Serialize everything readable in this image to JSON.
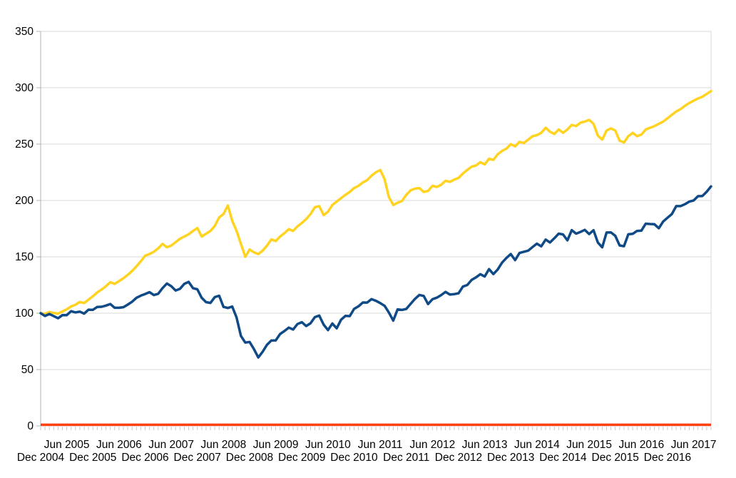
{
  "chart_data": {
    "type": "line",
    "title": "",
    "legend": "none",
    "grid": true,
    "background": "#ffffff",
    "y_axis": {
      "min": 0,
      "max": 350,
      "step": 50,
      "tick_labels": [
        "0",
        "50",
        "100",
        "150",
        "200",
        "250",
        "300",
        "350"
      ]
    },
    "x_axis": {
      "tick_unit": "month",
      "months_total": 155,
      "start_month": "Dec 2004",
      "end_month": "Oct 2017",
      "labels_row1": [
        "Jun 2005",
        "Jun 2006",
        "Jun 2007",
        "Jun 2008",
        "Jun 2009",
        "Jun 2010",
        "Jun 2011",
        "Jun 2012",
        "Jun 2013",
        "Jun 2014",
        "Jun 2015",
        "Jun 2016",
        "Jun 2017"
      ],
      "labels_row2": [
        "Dec 2004",
        "Dec 2005",
        "Dec 2006",
        "Dec 2007",
        "Dec 2008",
        "Dec 2009",
        "Dec 2010",
        "Dec 2011",
        "Dec 2012",
        "Dec 2013",
        "Dec 2014",
        "Dec 2015",
        "Dec 2016"
      ]
    },
    "series": [
      {
        "name": "yellow-line",
        "color": "#FFD320",
        "values": [
          100.0,
          99.5,
          101.0,
          100.2,
          99.6,
          101.5,
          103.5,
          106.0,
          107.5,
          110.0,
          109.0,
          112.0,
          115.0,
          118.5,
          121.0,
          124.0,
          127.5,
          126.0,
          128.5,
          131.0,
          134.0,
          137.5,
          141.5,
          146.0,
          151.0,
          152.5,
          154.5,
          157.5,
          161.5,
          158.5,
          160.0,
          163.0,
          166.0,
          168.0,
          170.0,
          173.0,
          175.5,
          168.0,
          170.5,
          173.0,
          177.5,
          185.0,
          188.0,
          195.5,
          182.0,
          173.0,
          161.5,
          150.0,
          156.5,
          154.0,
          152.5,
          155.5,
          160.0,
          165.5,
          164.0,
          168.0,
          171.0,
          174.5,
          173.0,
          177.0,
          180.0,
          183.5,
          188.0,
          194.0,
          195.0,
          187.0,
          190.0,
          196.0,
          199.0,
          202.0,
          205.0,
          207.5,
          211.0,
          213.0,
          216.0,
          218.0,
          222.0,
          225.0,
          227.0,
          219.0,
          203.0,
          196.0,
          198.0,
          199.5,
          205.0,
          209.0,
          210.5,
          211.0,
          207.5,
          208.5,
          213.0,
          212.0,
          214.0,
          217.5,
          216.5,
          218.5,
          220.0,
          224.0,
          227.0,
          230.0,
          231.0,
          234.0,
          232.0,
          237.0,
          236.0,
          241.0,
          244.0,
          246.0,
          250.0,
          248.0,
          252.0,
          251.0,
          254.0,
          257.0,
          258.0,
          260.0,
          264.5,
          261.0,
          259.0,
          263.0,
          260.0,
          263.0,
          267.0,
          266.0,
          269.0,
          270.0,
          271.5,
          268.0,
          257.5,
          254.0,
          262.0,
          264.0,
          262.0,
          253.0,
          251.5,
          257.0,
          260.0,
          257.0,
          258.5,
          263.0,
          264.5,
          266.0,
          268.0,
          270.0,
          273.0,
          276.0,
          279.0,
          281.0,
          284.0,
          286.5,
          288.5,
          290.5,
          292.0,
          294.5,
          297.0
        ]
      },
      {
        "name": "orange-flat-line",
        "color": "#FF420E",
        "constant": 1.0
      },
      {
        "name": "dark-blue-line",
        "color": "#0F4A86",
        "values": [
          100.0,
          97.5,
          99.3,
          97.4,
          95.5,
          98.3,
          98.3,
          101.8,
          100.7,
          101.4,
          99.6,
          103.1,
          103.0,
          105.6,
          105.7,
          106.8,
          108.1,
          104.8,
          104.8,
          105.3,
          107.6,
          110.2,
          113.7,
          115.6,
          117.0,
          118.7,
          116.1,
          117.2,
          122.3,
          126.3,
          124.0,
          120.1,
          121.6,
          126.0,
          127.8,
          122.2,
          121.2,
          113.7,
          109.8,
          109.1,
          114.3,
          115.5,
          105.6,
          104.6,
          105.9,
          96.2,
          79.9,
          73.9,
          74.5,
          68.1,
          60.7,
          65.8,
          72.0,
          75.8,
          75.9,
          81.5,
          84.2,
          87.2,
          85.5,
          90.4,
          92.0,
          88.6,
          91.1,
          96.5,
          97.9,
          89.9,
          85.0,
          90.9,
          86.6,
          94.2,
          97.6,
          97.4,
          103.8,
          106.1,
          109.5,
          109.4,
          112.5,
          111.0,
          109.0,
          106.6,
          100.6,
          93.4,
          103.4,
          102.9,
          103.8,
          108.3,
          112.7,
          116.2,
          115.3,
          108.1,
          112.4,
          113.8,
          116.1,
          118.9,
          116.5,
          116.9,
          117.7,
          123.6,
          125.0,
          129.5,
          131.8,
          134.6,
          132.5,
          139.1,
          134.7,
          138.8,
          144.9,
          149.0,
          152.5,
          147.1,
          153.4,
          154.5,
          155.5,
          158.7,
          161.7,
          159.3,
          165.3,
          162.7,
          166.5,
          170.6,
          169.9,
          164.6,
          173.7,
          170.6,
          172.1,
          173.9,
          170.2,
          173.6,
          162.7,
          158.4,
          171.6,
          171.7,
          168.7,
          160.1,
          159.4,
          170.0,
          170.4,
          173.0,
          173.2,
          179.4,
          179.1,
          178.9,
          175.4,
          181.4,
          184.7,
          188.0,
          195.0,
          195.0,
          196.7,
          199.0,
          200.0,
          203.8,
          204.0,
          207.8,
          212.5
        ]
      }
    ]
  },
  "style_colors": {
    "gridline": "#D9D9D9",
    "axis_line": "#B3B3B3",
    "x_tick": "#C8C8C8",
    "label_text": "#000000"
  }
}
